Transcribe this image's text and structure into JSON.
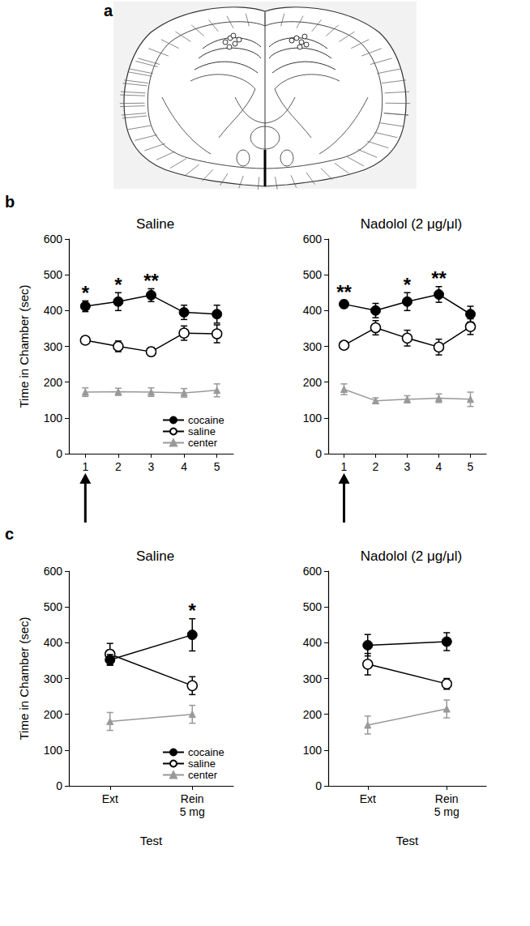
{
  "diagram": {
    "panel": "a"
  },
  "chart_data": [
    {
      "type": "line",
      "panel": "b",
      "title": "Saline",
      "y_label": "Time in Chamber (sec)",
      "categories": [
        1,
        2,
        3,
        4,
        5
      ],
      "ylim": [
        0,
        600
      ],
      "yticks": [
        0,
        100,
        200,
        300,
        400,
        500,
        600
      ],
      "grid": false,
      "legend": "lower right",
      "series": [
        {
          "name": "cocaine",
          "color": "#000000",
          "marker": "circle",
          "values": [
            412,
            425,
            443,
            395,
            390
          ],
          "errors": [
            15,
            25,
            18,
            20,
            25
          ]
        },
        {
          "name": "saline",
          "color": "#000000",
          "marker": "open_circle",
          "values": [
            317,
            300,
            285,
            337,
            335
          ],
          "errors": [
            10,
            15,
            12,
            20,
            25
          ]
        },
        {
          "name": "center",
          "color": "#999999",
          "marker": "triangle",
          "values": [
            172,
            173,
            172,
            170,
            177
          ],
          "errors": [
            12,
            10,
            12,
            12,
            18
          ]
        }
      ],
      "annotations": [
        {
          "x": 1,
          "text": "*"
        },
        {
          "x": 2,
          "text": "*"
        },
        {
          "x": 3,
          "text": "**"
        }
      ],
      "arrows": [
        1
      ]
    },
    {
      "type": "line",
      "title": "Nadolol (2 μg/μl)",
      "categories": [
        1,
        2,
        3,
        4,
        5
      ],
      "ylim": [
        0,
        600
      ],
      "yticks": [
        0,
        100,
        200,
        300,
        400,
        500,
        600
      ],
      "grid": false,
      "series": [
        {
          "color": "#000000",
          "marker": "circle",
          "values": [
            418,
            400,
            425,
            445,
            390
          ],
          "errors": [
            10,
            20,
            25,
            22,
            22
          ]
        },
        {
          "color": "#000000",
          "marker": "open_circle",
          "values": [
            303,
            352,
            323,
            298,
            355
          ],
          "errors": [
            10,
            20,
            22,
            22,
            22
          ]
        },
        {
          "color": "#999999",
          "marker": "triangle",
          "values": [
            180,
            148,
            152,
            155,
            152
          ],
          "errors": [
            15,
            8,
            10,
            12,
            20
          ]
        }
      ],
      "annotations": [
        {
          "x": 1,
          "text": "**"
        },
        {
          "x": 3,
          "text": "*"
        },
        {
          "x": 4,
          "text": "**"
        }
      ],
      "arrows": [
        1
      ]
    },
    {
      "type": "line",
      "panel": "c",
      "title": "Saline",
      "y_label": "Time in Chamber (sec)",
      "x_label": "Test",
      "categories": [
        "Ext",
        "Rein\n5 mg"
      ],
      "ylim": [
        0,
        600
      ],
      "yticks": [
        0,
        100,
        200,
        300,
        400,
        500,
        600
      ],
      "grid": false,
      "legend": "lower right",
      "series": [
        {
          "name": "cocaine",
          "color": "#000000",
          "marker": "circle",
          "values": [
            352,
            422
          ],
          "errors": [
            15,
            45
          ]
        },
        {
          "name": "saline",
          "color": "#000000",
          "marker": "open_circle",
          "values": [
            368,
            280
          ],
          "errors": [
            30,
            25
          ]
        },
        {
          "name": "center",
          "color": "#999999",
          "marker": "triangle",
          "values": [
            180,
            200
          ],
          "errors": [
            25,
            25
          ]
        }
      ],
      "annotations": [
        {
          "x": "Rein\n5 mg",
          "text": "*"
        }
      ]
    },
    {
      "type": "line",
      "title": "Nadolol (2 μg/μl)",
      "x_label": "Test",
      "categories": [
        "Ext",
        "Rein\n5 mg"
      ],
      "ylim": [
        0,
        600
      ],
      "yticks": [
        0,
        100,
        200,
        300,
        400,
        500,
        600
      ],
      "grid": false,
      "series": [
        {
          "color": "#000000",
          "marker": "circle",
          "values": [
            393,
            403
          ],
          "errors": [
            30,
            25
          ]
        },
        {
          "color": "#000000",
          "marker": "open_circle",
          "values": [
            340,
            285
          ],
          "errors": [
            30,
            15
          ]
        },
        {
          "color": "#999999",
          "marker": "triangle",
          "values": [
            170,
            215
          ],
          "errors": [
            25,
            25
          ]
        }
      ]
    }
  ]
}
